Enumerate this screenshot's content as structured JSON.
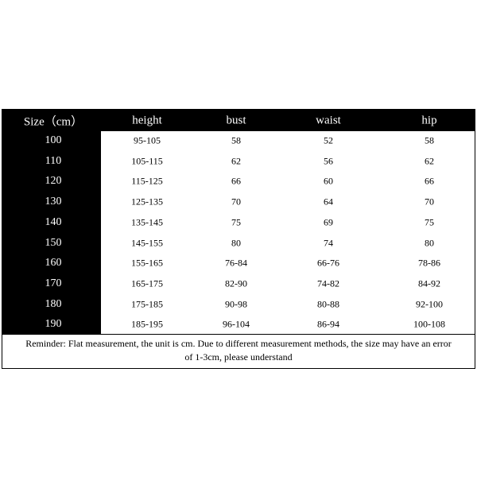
{
  "table": {
    "header": [
      "Size（cm）",
      "height",
      "bust",
      "waist",
      "hip"
    ],
    "rows": [
      [
        "100",
        "95-105",
        "58",
        "52",
        "58"
      ],
      [
        "110",
        "105-115",
        "62",
        "56",
        "62"
      ],
      [
        "120",
        "115-125",
        "66",
        "60",
        "66"
      ],
      [
        "130",
        "125-135",
        "70",
        "64",
        "70"
      ],
      [
        "140",
        "135-145",
        "75",
        "69",
        "75"
      ],
      [
        "150",
        "145-155",
        "80",
        "74",
        "80"
      ],
      [
        "160",
        "155-165",
        "76-84",
        "66-76",
        "78-86"
      ],
      [
        "170",
        "165-175",
        "82-90",
        "74-82",
        "84-92"
      ],
      [
        "180",
        "175-185",
        "90-98",
        "80-88",
        "92-100"
      ],
      [
        "190",
        "185-195",
        "96-104",
        "86-94",
        "100-108"
      ]
    ],
    "note": [
      "Reminder: Flat measurement, the unit is cm. Due to different measurement methods, the size may have an error",
      "of 1-3cm, please understand"
    ]
  }
}
